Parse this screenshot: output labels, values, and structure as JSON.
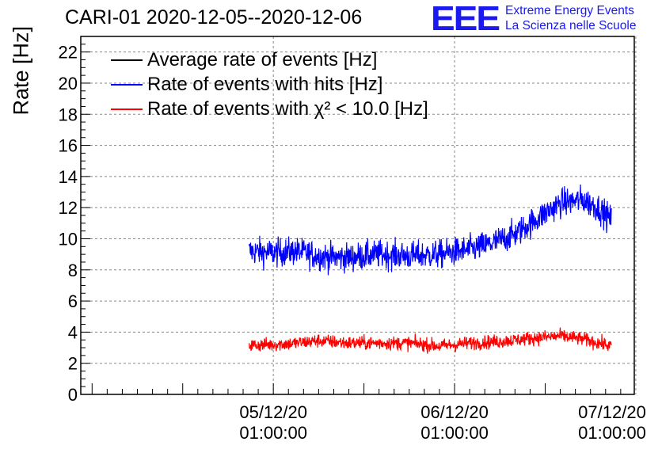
{
  "header": {
    "title": "CARI-01 2020-12-05--2020-12-06",
    "brand_logo": "EEE",
    "brand_line1": "Extreme Energy Events",
    "brand_line2": "La Scienza nelle Scuole"
  },
  "chart_data": {
    "type": "line",
    "title": "CARI-01 2020-12-05--2020-12-06",
    "xlabel": "",
    "ylabel": "Rate [Hz]",
    "ylim": [
      0,
      23
    ],
    "yticks": [
      "0",
      "2",
      "4",
      "6",
      "8",
      "10",
      "12",
      "14",
      "16",
      "18",
      "20",
      "22"
    ],
    "xlim_hours": [
      -25.5,
      47.8
    ],
    "xticks": [
      {
        "date": "05/12/20",
        "time": "01:00:00",
        "hour": 0
      },
      {
        "date": "06/12/20",
        "time": "01:00:00",
        "hour": 24
      },
      {
        "date": "07/12/20",
        "time": "01:00:00",
        "hour": 48
      }
    ],
    "grid": true,
    "legend_position": "top-left",
    "x_data_range_hours": [
      -3.2,
      44.8
    ],
    "series": [
      {
        "name": "Average rate of events [Hz]",
        "color": "#000000",
        "style": "line",
        "values": []
      },
      {
        "name": "Rate of events with hits [Hz]",
        "color": "#0000ff",
        "style": "noisy-line",
        "noise": 0.45,
        "trend": [
          [
            -3.2,
            9.2
          ],
          [
            0,
            9.1
          ],
          [
            3,
            9.2
          ],
          [
            6,
            8.9
          ],
          [
            8,
            8.8
          ],
          [
            10,
            8.8
          ],
          [
            14,
            9.0
          ],
          [
            18,
            8.9
          ],
          [
            22,
            9.0
          ],
          [
            26,
            9.3
          ],
          [
            29,
            9.7
          ],
          [
            32,
            10.3
          ],
          [
            35,
            11.3
          ],
          [
            38,
            12.3
          ],
          [
            41,
            12.5
          ],
          [
            43,
            12.0
          ],
          [
            44.8,
            11.2
          ]
        ]
      },
      {
        "name": "Rate of events with χ² < 10.0 [Hz]",
        "color": "#ff0000",
        "style": "noisy-line",
        "noise": 0.22,
        "trend": [
          [
            -3.2,
            3.15
          ],
          [
            2,
            3.25
          ],
          [
            6,
            3.45
          ],
          [
            10,
            3.3
          ],
          [
            14,
            3.3
          ],
          [
            18,
            3.3
          ],
          [
            22,
            3.1
          ],
          [
            26,
            3.3
          ],
          [
            30,
            3.4
          ],
          [
            34,
            3.6
          ],
          [
            38,
            3.75
          ],
          [
            41,
            3.55
          ],
          [
            44.8,
            3.1
          ]
        ]
      }
    ]
  }
}
